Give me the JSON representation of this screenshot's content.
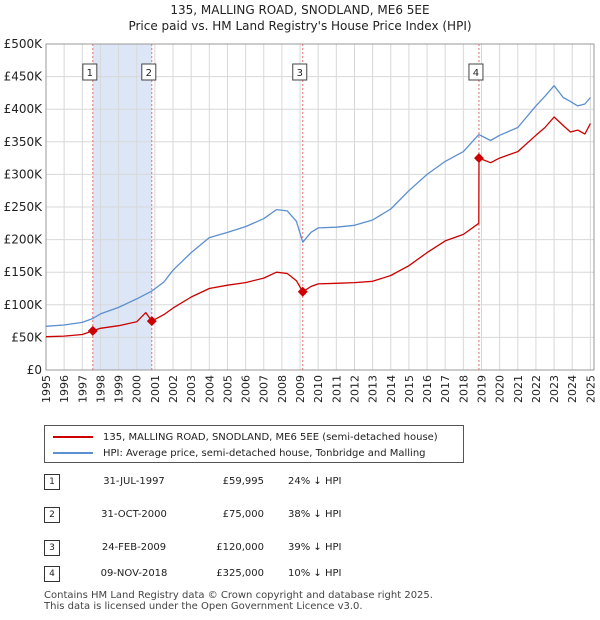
{
  "chart_data": {
    "type": "line",
    "title": "135, MALLING ROAD, SNODLAND, ME6 5EE",
    "subtitle": "Price paid vs. HM Land Registry's House Price Index (HPI)",
    "x_range": [
      1995,
      2025.2
    ],
    "ylim": [
      0,
      500000
    ],
    "y_ticks": [
      0,
      50000,
      100000,
      150000,
      200000,
      250000,
      300000,
      350000,
      400000,
      450000,
      500000
    ],
    "y_tick_labels": [
      "£0",
      "£50K",
      "£100K",
      "£150K",
      "£200K",
      "£250K",
      "£300K",
      "£350K",
      "£400K",
      "£450K",
      "£500K"
    ],
    "x_ticks": [
      "1995",
      "1996",
      "1997",
      "1998",
      "1999",
      "2000",
      "2001",
      "2002",
      "2003",
      "2004",
      "2005",
      "2006",
      "2007",
      "2008",
      "2009",
      "2010",
      "2011",
      "2012",
      "2013",
      "2014",
      "2015",
      "2016",
      "2017",
      "2018",
      "2019",
      "2020",
      "2021",
      "2022",
      "2023",
      "2024",
      "2025"
    ],
    "grid": true,
    "colors": {
      "property": "#cc0000",
      "hpi": "#5b8fd0",
      "shade": "#dde6f6",
      "vline": "#e07070"
    },
    "shaded_ranges": [
      [
        1997.58,
        2000.83
      ]
    ],
    "series": [
      {
        "name": "135, MALLING ROAD, SNODLAND, ME6 5EE (semi-detached house)",
        "color": "#cc0000",
        "x": [
          1995,
          1996,
          1997.0,
          1997.58,
          1998,
          1999,
          2000,
          2000.5,
          2000.83,
          2001.5,
          2002,
          2003,
          2004,
          2005,
          2006,
          2007,
          2007.7,
          2008.3,
          2008.8,
          2009.15,
          2009.6,
          2010,
          2011,
          2012,
          2013,
          2014,
          2015,
          2016,
          2017,
          2018,
          2018.85,
          2018.86,
          2019.5,
          2020,
          2021,
          2022,
          2022.5,
          2023,
          2023.5,
          2023.9,
          2024.3,
          2024.7,
          2025.0
        ],
        "y": [
          51000,
          52000,
          54500,
          59995,
          64000,
          68000,
          74000,
          88000,
          75000,
          85000,
          95000,
          112000,
          125000,
          130000,
          134000,
          141000,
          150000,
          148000,
          137000,
          120000,
          128000,
          132000,
          133000,
          134000,
          136000,
          145000,
          160000,
          180000,
          198000,
          208000,
          225000,
          325000,
          318000,
          325000,
          335000,
          360000,
          372000,
          388000,
          375000,
          365000,
          368000,
          362000,
          378000
        ]
      },
      {
        "name": "HPI: Average price, semi-detached house, Tonbridge and Malling",
        "color": "#5b8fd0",
        "x": [
          1995,
          1996,
          1997.0,
          1997.58,
          1998,
          1999,
          2000,
          2000.83,
          2001.5,
          2002,
          2003,
          2004,
          2005,
          2006,
          2007,
          2007.7,
          2008.3,
          2008.8,
          2009.15,
          2009.6,
          2010,
          2011,
          2012,
          2013,
          2014,
          2015,
          2016,
          2017,
          2018,
          2018.85,
          2019.5,
          2020,
          2021,
          2022,
          2022.5,
          2023,
          2023.5,
          2023.9,
          2024.3,
          2024.7,
          2025.0
        ],
        "y": [
          67000,
          69000,
          73000,
          79000,
          86000,
          96000,
          109000,
          121000,
          135000,
          153000,
          180000,
          203000,
          211000,
          220000,
          232000,
          246000,
          244000,
          228000,
          196000,
          211000,
          218000,
          219000,
          222000,
          230000,
          247000,
          275000,
          300000,
          320000,
          335000,
          361000,
          352000,
          360000,
          372000,
          405000,
          420000,
          436000,
          418000,
          412000,
          405000,
          408000,
          418000
        ]
      }
    ],
    "sales": [
      {
        "n": "1",
        "x": 1997.58,
        "y": 59995
      },
      {
        "n": "2",
        "x": 2000.83,
        "y": 75000
      },
      {
        "n": "3",
        "x": 2009.15,
        "y": 120000
      },
      {
        "n": "4",
        "x": 2018.86,
        "y": 325000
      }
    ],
    "legend_position": "bottom"
  },
  "legend": {
    "property": "135, MALLING ROAD, SNODLAND, ME6 5EE (semi-detached house)",
    "hpi": "HPI: Average price, semi-detached house, Tonbridge and Malling"
  },
  "sales_table": [
    {
      "n": "1",
      "date": "31-JUL-1997",
      "price": "£59,995",
      "diff": "24% ↓ HPI"
    },
    {
      "n": "2",
      "date": "31-OCT-2000",
      "price": "£75,000",
      "diff": "38% ↓ HPI"
    },
    {
      "n": "3",
      "date": "24-FEB-2009",
      "price": "£120,000",
      "diff": "39% ↓ HPI"
    },
    {
      "n": "4",
      "date": "09-NOV-2018",
      "price": "£325,000",
      "diff": "10% ↓ HPI"
    }
  ],
  "footer": {
    "line1": "Contains HM Land Registry data © Crown copyright and database right 2025.",
    "line2": "This data is licensed under the Open Government Licence v3.0."
  }
}
